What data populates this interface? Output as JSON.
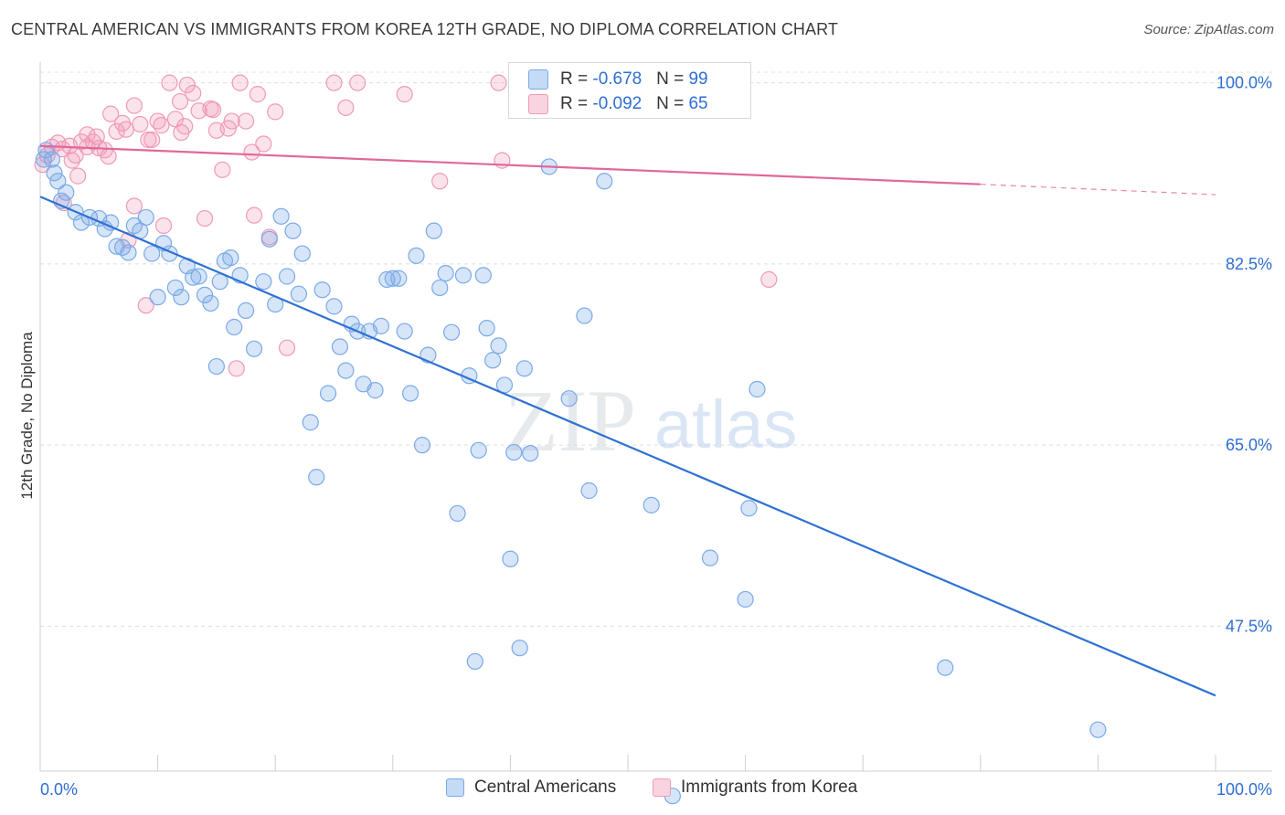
{
  "title": "CENTRAL AMERICAN VS IMMIGRANTS FROM KOREA 12TH GRADE, NO DIPLOMA CORRELATION CHART",
  "source": "Source: ZipAtlas.com",
  "watermark": {
    "zip": "ZIP",
    "atlas": "atlas"
  },
  "stats": [
    {
      "r_label": "R = ",
      "r_value": "-0.678",
      "n_label": "N = ",
      "n_value": "99",
      "color": "#7aaae8"
    },
    {
      "r_label": "R = ",
      "r_value": "-0.092",
      "n_label": "N = ",
      "n_value": "65",
      "color": "#f09ab6"
    }
  ],
  "chart_data": {
    "type": "scatter",
    "title": "CENTRAL AMERICAN VS IMMIGRANTS FROM KOREA 12TH GRADE, NO DIPLOMA CORRELATION CHART",
    "xlabel": "",
    "ylabel": "12th Grade, No Diploma",
    "xlim": [
      0,
      100
    ],
    "ylim": [
      33.5,
      102
    ],
    "x_tick_labels": [
      "0.0%",
      "100.0%"
    ],
    "y_ticks": [
      100,
      82.5,
      65,
      47.5
    ],
    "y_tick_labels": [
      "100.0%",
      "82.5%",
      "65.0%",
      "47.5%"
    ],
    "grid": true,
    "legend_position": "bottom",
    "series": [
      {
        "name": "Central Americans",
        "color": "#7aaae8",
        "line_color": "#2e72d2",
        "trend": {
          "x": [
            0,
            100
          ],
          "y": [
            89.0,
            40.8
          ]
        },
        "points": [
          [
            0.3,
            92.6
          ],
          [
            0.5,
            93.5
          ],
          [
            1.0,
            92.6
          ],
          [
            1.2,
            91.3
          ],
          [
            1.5,
            90.5
          ],
          [
            1.8,
            88.6
          ],
          [
            2.2,
            89.4
          ],
          [
            3.0,
            87.5
          ],
          [
            3.5,
            86.5
          ],
          [
            4.2,
            87.0
          ],
          [
            5.0,
            86.9
          ],
          [
            5.5,
            85.9
          ],
          [
            6.0,
            86.5
          ],
          [
            6.5,
            84.2
          ],
          [
            7.0,
            84.1
          ],
          [
            7.5,
            83.6
          ],
          [
            8.0,
            86.2
          ],
          [
            8.5,
            85.7
          ],
          [
            9.0,
            87.0
          ],
          [
            9.5,
            83.5
          ],
          [
            10.0,
            79.3
          ],
          [
            10.5,
            84.5
          ],
          [
            11.0,
            83.5
          ],
          [
            11.5,
            80.2
          ],
          [
            12.0,
            79.3
          ],
          [
            12.5,
            82.3
          ],
          [
            13.0,
            81.2
          ],
          [
            13.5,
            81.3
          ],
          [
            14.0,
            79.5
          ],
          [
            14.5,
            78.7
          ],
          [
            15.0,
            72.6
          ],
          [
            15.3,
            80.8
          ],
          [
            15.7,
            82.8
          ],
          [
            16.2,
            83.1
          ],
          [
            16.5,
            76.4
          ],
          [
            17.0,
            81.4
          ],
          [
            17.5,
            78.0
          ],
          [
            18.2,
            74.3
          ],
          [
            19.0,
            80.8
          ],
          [
            19.5,
            84.9
          ],
          [
            20.0,
            78.6
          ],
          [
            20.5,
            87.1
          ],
          [
            21.0,
            81.3
          ],
          [
            21.5,
            85.7
          ],
          [
            22.0,
            79.6
          ],
          [
            22.3,
            83.5
          ],
          [
            23.0,
            67.2
          ],
          [
            23.5,
            61.9
          ],
          [
            24.0,
            80.0
          ],
          [
            24.5,
            70.0
          ],
          [
            25.0,
            78.4
          ],
          [
            25.5,
            74.5
          ],
          [
            26.0,
            72.2
          ],
          [
            26.5,
            76.7
          ],
          [
            27.0,
            76.0
          ],
          [
            27.5,
            70.9
          ],
          [
            28.0,
            76.0
          ],
          [
            28.5,
            70.3
          ],
          [
            29.0,
            76.5
          ],
          [
            29.5,
            81.0
          ],
          [
            30.0,
            81.1
          ],
          [
            30.5,
            81.1
          ],
          [
            31.0,
            76.0
          ],
          [
            31.5,
            70.0
          ],
          [
            32.0,
            83.3
          ],
          [
            32.5,
            65.0
          ],
          [
            33.0,
            73.7
          ],
          [
            33.5,
            85.7
          ],
          [
            34.0,
            80.2
          ],
          [
            34.5,
            81.6
          ],
          [
            35.0,
            75.9
          ],
          [
            35.5,
            58.4
          ],
          [
            36.0,
            81.4
          ],
          [
            36.5,
            71.7
          ],
          [
            37.0,
            44.1
          ],
          [
            37.3,
            64.5
          ],
          [
            37.7,
            81.4
          ],
          [
            38.0,
            76.3
          ],
          [
            38.5,
            73.2
          ],
          [
            39.0,
            74.6
          ],
          [
            39.5,
            70.8
          ],
          [
            40.0,
            54.0
          ],
          [
            40.3,
            64.3
          ],
          [
            40.8,
            45.4
          ],
          [
            41.2,
            72.4
          ],
          [
            41.7,
            64.2
          ],
          [
            43.3,
            91.9
          ],
          [
            45.0,
            69.5
          ],
          [
            46.3,
            77.5
          ],
          [
            46.7,
            60.6
          ],
          [
            48.0,
            90.5
          ],
          [
            52.0,
            59.2
          ],
          [
            53.8,
            31.1
          ],
          [
            57.0,
            54.1
          ],
          [
            60.0,
            50.1
          ],
          [
            60.3,
            58.9
          ],
          [
            61.0,
            70.4
          ],
          [
            77.0,
            43.5
          ],
          [
            90.0,
            37.5
          ]
        ]
      },
      {
        "name": "Immigrants from Korea",
        "color": "#f09ab6",
        "line_color": "#e0689a",
        "trend": {
          "x": [
            0,
            80
          ],
          "y": [
            93.9,
            90.2
          ]
        },
        "trend_dashed": {
          "x": [
            80,
            100
          ],
          "y": [
            90.2,
            89.2
          ]
        },
        "points": [
          [
            0.2,
            92.1
          ],
          [
            0.6,
            93.0
          ],
          [
            1.0,
            93.8
          ],
          [
            1.5,
            94.2
          ],
          [
            2.0,
            88.4
          ],
          [
            2.5,
            93.9
          ],
          [
            3.0,
            93.0
          ],
          [
            3.5,
            94.3
          ],
          [
            4.0,
            95.0
          ],
          [
            4.5,
            94.3
          ],
          [
            5.0,
            93.7
          ],
          [
            5.5,
            93.5
          ],
          [
            6.0,
            97.0
          ],
          [
            6.5,
            95.3
          ],
          [
            7.0,
            96.1
          ],
          [
            7.5,
            84.8
          ],
          [
            8.0,
            97.8
          ],
          [
            8.5,
            96.0
          ],
          [
            9.0,
            78.5
          ],
          [
            9.5,
            94.5
          ],
          [
            10.0,
            96.3
          ],
          [
            10.5,
            86.2
          ],
          [
            11.0,
            100.0
          ],
          [
            11.5,
            96.5
          ],
          [
            12.0,
            95.2
          ],
          [
            12.5,
            99.8
          ],
          [
            13.0,
            99.0
          ],
          [
            13.5,
            97.3
          ],
          [
            14.0,
            86.9
          ],
          [
            14.5,
            97.5
          ],
          [
            15.0,
            95.4
          ],
          [
            15.5,
            91.6
          ],
          [
            16.0,
            95.6
          ],
          [
            16.3,
            96.3
          ],
          [
            16.7,
            72.4
          ],
          [
            17.0,
            100.0
          ],
          [
            17.5,
            96.3
          ],
          [
            18.0,
            93.3
          ],
          [
            18.2,
            87.2
          ],
          [
            18.5,
            98.9
          ],
          [
            19.0,
            94.1
          ],
          [
            19.5,
            85.1
          ],
          [
            20.0,
            97.2
          ],
          [
            21.0,
            74.4
          ],
          [
            25.0,
            100.0
          ],
          [
            26.0,
            97.6
          ],
          [
            27.0,
            100.0
          ],
          [
            31.0,
            98.9
          ],
          [
            34.0,
            90.5
          ],
          [
            39.0,
            100.0
          ],
          [
            39.3,
            92.5
          ],
          [
            62.0,
            81.0
          ],
          [
            3.2,
            91.0
          ],
          [
            4.8,
            94.8
          ],
          [
            8.0,
            88.1
          ],
          [
            12.3,
            95.8
          ],
          [
            2.7,
            92.5
          ],
          [
            7.3,
            95.5
          ],
          [
            14.7,
            97.4
          ],
          [
            1.9,
            93.6
          ],
          [
            4.0,
            93.8
          ],
          [
            5.8,
            92.9
          ],
          [
            9.2,
            94.5
          ],
          [
            10.3,
            95.9
          ],
          [
            11.9,
            98.2
          ]
        ]
      }
    ]
  },
  "legend_bottom": [
    {
      "label": "Central Americans",
      "fill": "#c5daf5",
      "stroke": "#7aaae8"
    },
    {
      "label": "Immigrants from Korea",
      "fill": "#f9d3df",
      "stroke": "#f09ab6"
    }
  ]
}
